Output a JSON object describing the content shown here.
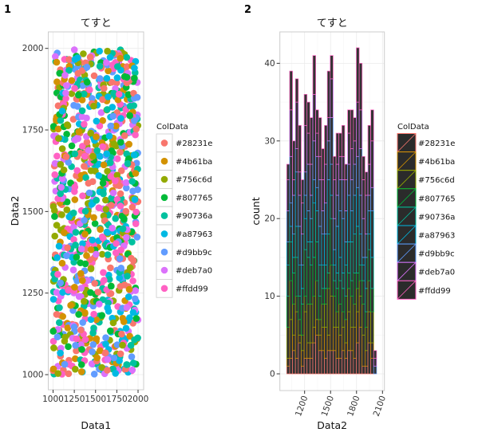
{
  "chart_data": [
    {
      "type": "scatter",
      "tag": "1",
      "title": "てすと",
      "xlabel": "Data1",
      "ylabel": "Data2",
      "xlim": [
        990,
        2010
      ],
      "ylim": [
        975,
        2035
      ],
      "xticks": [
        "1000",
        "1250",
        "1500",
        "1750",
        "2000"
      ],
      "yticks": [
        "1000",
        "1250",
        "1500",
        "1750",
        "2000"
      ],
      "grid": true,
      "legend": {
        "title": "ColData",
        "placement": "right",
        "entries": [
          "#28231e",
          "#4b61ba",
          "#756c6d",
          "#807765",
          "#90736a",
          "#a87963",
          "#d9bb9c",
          "#deb7a0",
          "#ffdd99"
        ],
        "colors": [
          "#F8766D",
          "#D39200",
          "#93AA00",
          "#00BA38",
          "#00C19F",
          "#00B9E3",
          "#619CFF",
          "#DB72FB",
          "#FF61C3"
        ]
      },
      "points": "about 1000 points spread evenly over Data1 1000–2000 and Data2 1000–2000"
    },
    {
      "type": "bar",
      "subtype": "stacked histogram",
      "tag": "2",
      "title": "てすと",
      "xlabel": "Data2",
      "ylabel": "count",
      "xlim": [
        950,
        2110
      ],
      "ylim": [
        -2,
        44
      ],
      "xticks": [
        "1200",
        "1500",
        "1800",
        "2100"
      ],
      "yticks": [
        "0",
        "10",
        "20",
        "30",
        "40"
      ],
      "grid": true,
      "bin_width": 33.5,
      "bin_start": 960,
      "counts": [
        0,
        27,
        39,
        30,
        38,
        32,
        25,
        36,
        35,
        33,
        41,
        34,
        33,
        29,
        32,
        39,
        41,
        28,
        31,
        31,
        32,
        27,
        34,
        34,
        33,
        42,
        40,
        28,
        26,
        32,
        34,
        3,
        0
      ],
      "fill": "#333333",
      "legend": {
        "title": "ColData",
        "placement": "right",
        "entries": [
          "#28231e",
          "#4b61ba",
          "#756c6d",
          "#807765",
          "#90736a",
          "#a87963",
          "#d9bb9c",
          "#deb7a0",
          "#ffdd99"
        ],
        "colors": [
          "#F8766D",
          "#D39200",
          "#93AA00",
          "#00BA38",
          "#00C19F",
          "#00B9E3",
          "#619CFF",
          "#DB72FB",
          "#FF61C3"
        ]
      }
    }
  ]
}
